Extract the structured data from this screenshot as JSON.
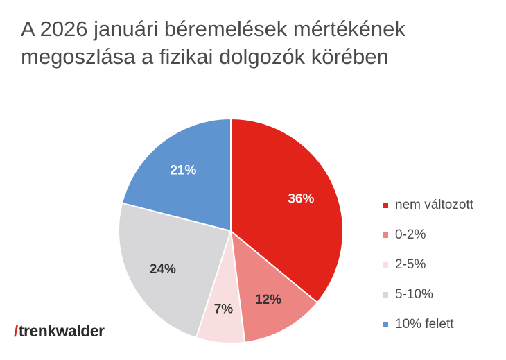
{
  "chart_data": {
    "type": "pie",
    "title_lines": [
      "A 2026 januári béremelések mértékének",
      "megoszlása a fizikai dolgozók körében"
    ],
    "categories": [
      "nem változott",
      "0-2%",
      "2-5%",
      "5-10%",
      "10% felett"
    ],
    "values": [
      36,
      12,
      7,
      24,
      21
    ],
    "labels": [
      "36%",
      "12%",
      "7%",
      "24%",
      "21%"
    ],
    "colors": [
      "#e2231a",
      "#ed8582",
      "#f8dedf",
      "#d7d6d8",
      "#5f94d0"
    ],
    "label_colors": [
      "#ffffff",
      "#333333",
      "#333333",
      "#333333",
      "#ffffff"
    ],
    "legend_position": "right"
  },
  "brand": {
    "slash": "/",
    "name": "trenkwalder"
  }
}
